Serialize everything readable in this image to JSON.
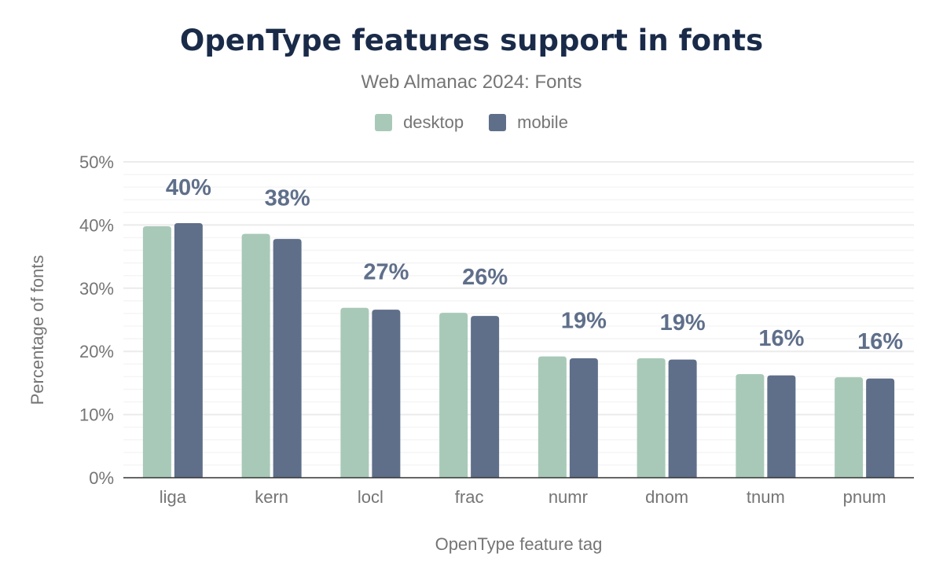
{
  "chart_data": {
    "type": "bar",
    "title": "OpenType features support in fonts",
    "subtitle": "Web Almanac 2024: Fonts",
    "xlabel": "OpenType feature tag",
    "ylabel": "Percentage of fonts",
    "ylim": [
      0,
      50
    ],
    "yticks": [
      "0%",
      "10%",
      "20%",
      "30%",
      "40%",
      "50%"
    ],
    "grid": true,
    "legend_placement": "top",
    "categories": [
      "liga",
      "kern",
      "locl",
      "frac",
      "numr",
      "dnom",
      "tnum",
      "pnum"
    ],
    "series": [
      {
        "name": "desktop",
        "color": "#a8c9b8",
        "values": [
          39.8,
          38.6,
          26.9,
          26.1,
          19.2,
          18.9,
          16.4,
          15.9
        ]
      },
      {
        "name": "mobile",
        "color": "#5f6f8a",
        "values": [
          40.3,
          37.8,
          26.6,
          25.6,
          18.9,
          18.7,
          16.2,
          15.7
        ]
      }
    ],
    "data_labels": [
      "40%",
      "38%",
      "27%",
      "26%",
      "19%",
      "19%",
      "16%",
      "16%"
    ]
  }
}
